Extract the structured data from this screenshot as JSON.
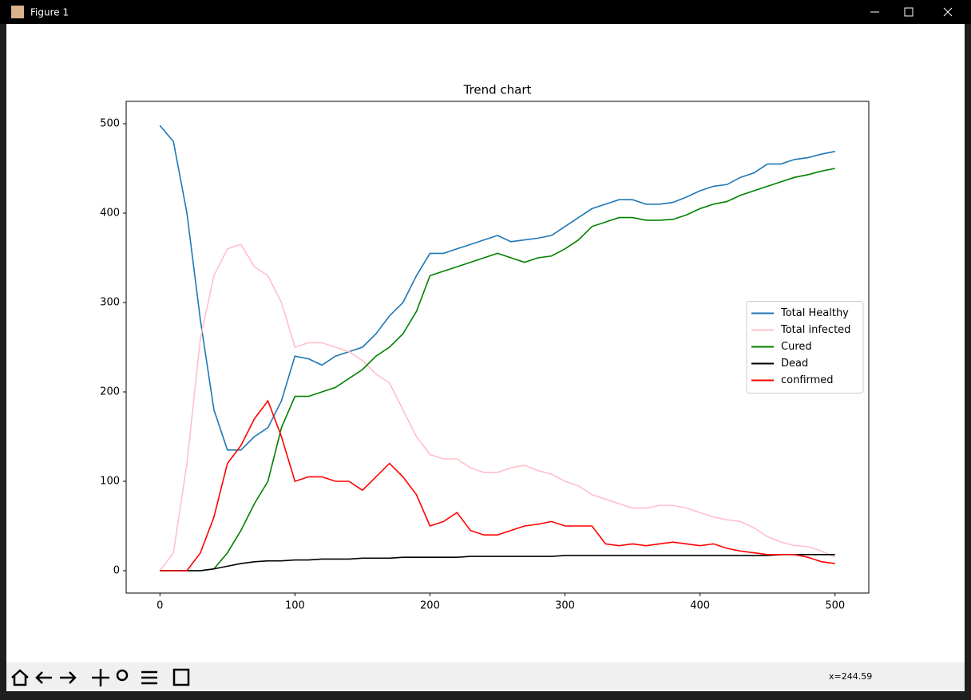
{
  "window": {
    "title": "Figure 1",
    "status": "x=244.59"
  },
  "chart_data": {
    "type": "line",
    "title": "Trend chart",
    "x": [
      0,
      10,
      20,
      30,
      40,
      50,
      60,
      70,
      80,
      90,
      100,
      110,
      120,
      130,
      140,
      150,
      160,
      170,
      180,
      190,
      200,
      210,
      220,
      230,
      240,
      250,
      260,
      270,
      280,
      290,
      300,
      310,
      320,
      330,
      340,
      350,
      360,
      370,
      380,
      390,
      400,
      410,
      420,
      430,
      440,
      450,
      460,
      470,
      480,
      490,
      500
    ],
    "series": [
      {
        "name": "Total Healthy",
        "color": "#1f77b4",
        "values": [
          498,
          480,
          400,
          280,
          180,
          135,
          135,
          150,
          160,
          190,
          240,
          237,
          230,
          240,
          245,
          250,
          265,
          285,
          300,
          330,
          355,
          355,
          360,
          365,
          370,
          375,
          368,
          370,
          372,
          375,
          385,
          395,
          405,
          410,
          415,
          415,
          410,
          410,
          412,
          418,
          425,
          430,
          432,
          440,
          445,
          455,
          455,
          460,
          462,
          466,
          469
        ]
      },
      {
        "name": "Total infected",
        "color": "#ffc0cb",
        "values": [
          0,
          20,
          120,
          260,
          330,
          360,
          365,
          340,
          330,
          300,
          250,
          255,
          255,
          250,
          245,
          235,
          220,
          210,
          180,
          150,
          130,
          125,
          125,
          115,
          110,
          110,
          115,
          118,
          112,
          108,
          100,
          95,
          85,
          80,
          75,
          70,
          70,
          73,
          73,
          70,
          65,
          60,
          57,
          55,
          48,
          38,
          32,
          28,
          27,
          22,
          15
        ]
      },
      {
        "name": "Cured",
        "color": "#008000",
        "values": [
          0,
          0,
          0,
          0,
          2,
          20,
          45,
          75,
          100,
          160,
          195,
          195,
          200,
          205,
          215,
          225,
          240,
          250,
          265,
          290,
          330,
          335,
          340,
          345,
          350,
          355,
          350,
          345,
          350,
          352,
          360,
          370,
          385,
          390,
          395,
          395,
          392,
          392,
          393,
          398,
          405,
          410,
          413,
          420,
          425,
          430,
          435,
          440,
          443,
          447,
          450
        ]
      },
      {
        "name": "Dead",
        "color": "#000000",
        "values": [
          0,
          0,
          0,
          0,
          2,
          5,
          8,
          10,
          11,
          11,
          12,
          12,
          13,
          13,
          13,
          14,
          14,
          14,
          15,
          15,
          15,
          15,
          15,
          16,
          16,
          16,
          16,
          16,
          16,
          16,
          17,
          17,
          17,
          17,
          17,
          17,
          17,
          17,
          17,
          17,
          17,
          17,
          17,
          17,
          17,
          17,
          18,
          18,
          18,
          18,
          18
        ]
      },
      {
        "name": "confirmed",
        "color": "#ff0000",
        "values": [
          0,
          0,
          0,
          20,
          60,
          120,
          140,
          170,
          190,
          150,
          100,
          105,
          105,
          100,
          100,
          90,
          105,
          120,
          105,
          85,
          50,
          55,
          65,
          45,
          40,
          40,
          45,
          50,
          52,
          55,
          50,
          50,
          50,
          30,
          28,
          30,
          28,
          30,
          32,
          30,
          28,
          30,
          25,
          22,
          20,
          18,
          18,
          18,
          15,
          10,
          8
        ]
      }
    ],
    "xlim": [
      -25,
      525
    ],
    "ylim": [
      -25,
      525
    ],
    "xticks": [
      0,
      100,
      200,
      300,
      400,
      500
    ],
    "yticks": [
      0,
      100,
      200,
      300,
      400,
      500
    ],
    "legend": "center right"
  }
}
